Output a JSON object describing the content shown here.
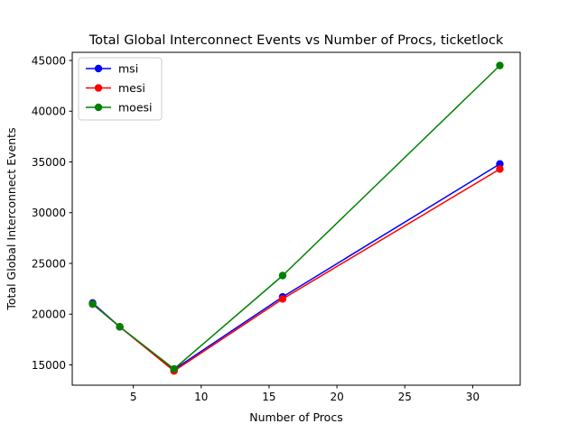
{
  "chart_data": {
    "type": "line",
    "title": "Total Global Interconnect Events vs Number of Procs, ticketlock",
    "xlabel": "Number of Procs",
    "ylabel": "Total Global Interconnect Events",
    "xlim": [
      0.5,
      33.5
    ],
    "ylim": [
      13000,
      45800
    ],
    "xticks": [
      5,
      10,
      15,
      20,
      25,
      30
    ],
    "yticks": [
      15000,
      20000,
      25000,
      30000,
      35000,
      40000,
      45000
    ],
    "x": [
      2,
      4,
      8,
      16,
      32
    ],
    "series": [
      {
        "name": "msi",
        "color": "#0000ff",
        "values": [
          21100,
          18750,
          14550,
          21700,
          34800
        ]
      },
      {
        "name": "mesi",
        "color": "#ff0000",
        "values": [
          21000,
          18750,
          14400,
          21500,
          34300
        ]
      },
      {
        "name": "moesi",
        "color": "#008000",
        "values": [
          21000,
          18750,
          14600,
          23800,
          44500
        ]
      }
    ],
    "grid": false,
    "legend": "top-left"
  }
}
